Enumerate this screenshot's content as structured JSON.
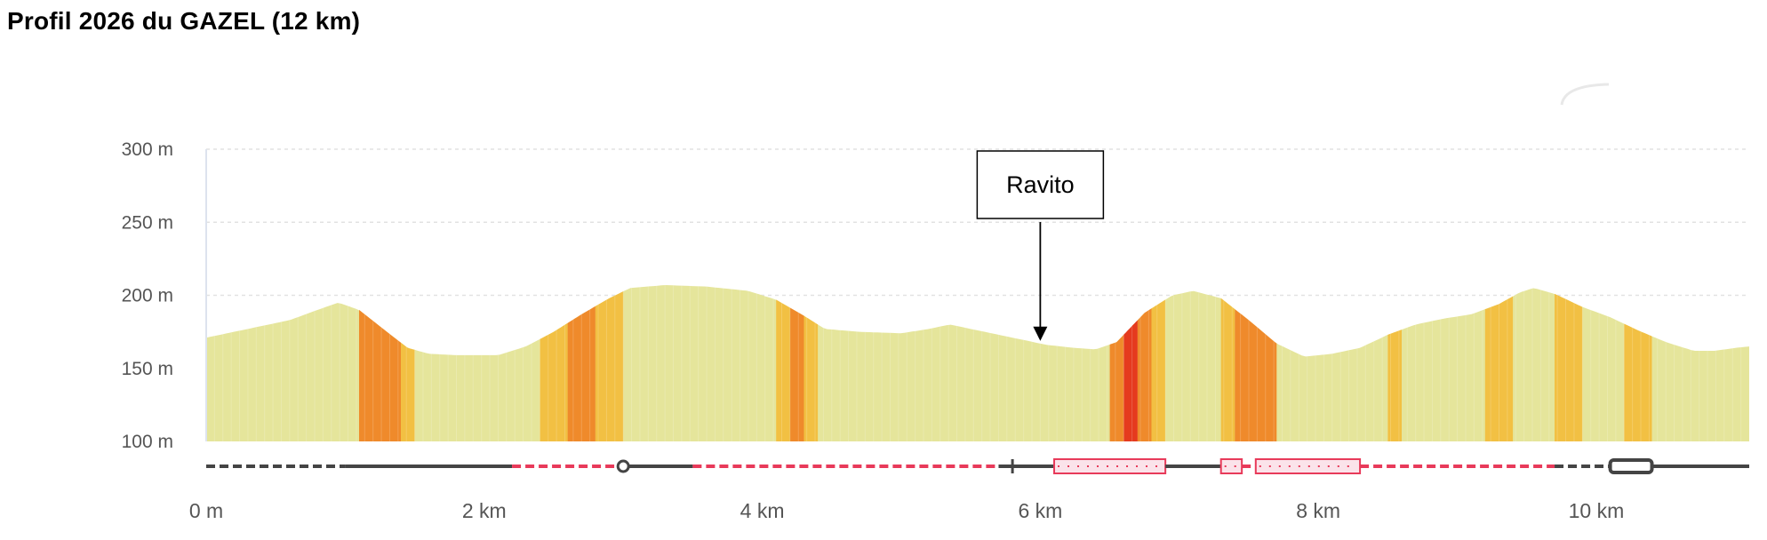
{
  "title": "Profil 2026 du GAZEL (12 km)",
  "chart_data": {
    "type": "area",
    "title": "Profil 2026 du GAZEL (12 km)",
    "xlabel": "",
    "ylabel": "",
    "xlim": [
      0,
      11.1
    ],
    "ylim": [
      100,
      300
    ],
    "x_ticks": [
      {
        "value": 0,
        "label": "0 m"
      },
      {
        "value": 2,
        "label": "2 km"
      },
      {
        "value": 4,
        "label": "4 km"
      },
      {
        "value": 6,
        "label": "6 km"
      },
      {
        "value": 8,
        "label": "8 km"
      },
      {
        "value": 10,
        "label": "10 km"
      }
    ],
    "y_ticks": [
      {
        "value": 100,
        "label": "100 m"
      },
      {
        "value": 150,
        "label": "150 m"
      },
      {
        "value": 200,
        "label": "200 m"
      },
      {
        "value": 250,
        "label": "250 m"
      },
      {
        "value": 300,
        "label": "300 m"
      }
    ],
    "grid": true,
    "elevation": [
      {
        "x": 0.0,
        "y": 171
      },
      {
        "x": 0.2,
        "y": 175
      },
      {
        "x": 0.4,
        "y": 179
      },
      {
        "x": 0.6,
        "y": 183
      },
      {
        "x": 0.8,
        "y": 190
      },
      {
        "x": 0.95,
        "y": 195
      },
      {
        "x": 1.1,
        "y": 190
      },
      {
        "x": 1.3,
        "y": 175
      },
      {
        "x": 1.45,
        "y": 164
      },
      {
        "x": 1.6,
        "y": 160
      },
      {
        "x": 1.8,
        "y": 159
      },
      {
        "x": 2.1,
        "y": 159
      },
      {
        "x": 2.3,
        "y": 165
      },
      {
        "x": 2.5,
        "y": 175
      },
      {
        "x": 2.7,
        "y": 187
      },
      {
        "x": 2.9,
        "y": 198
      },
      {
        "x": 3.05,
        "y": 205
      },
      {
        "x": 3.3,
        "y": 207
      },
      {
        "x": 3.6,
        "y": 206
      },
      {
        "x": 3.9,
        "y": 203
      },
      {
        "x": 4.1,
        "y": 197
      },
      {
        "x": 4.3,
        "y": 186
      },
      {
        "x": 4.45,
        "y": 177
      },
      {
        "x": 4.7,
        "y": 175
      },
      {
        "x": 5.0,
        "y": 174
      },
      {
        "x": 5.2,
        "y": 177
      },
      {
        "x": 5.35,
        "y": 180
      },
      {
        "x": 5.55,
        "y": 176
      },
      {
        "x": 5.8,
        "y": 171
      },
      {
        "x": 6.05,
        "y": 166
      },
      {
        "x": 6.25,
        "y": 164
      },
      {
        "x": 6.4,
        "y": 163
      },
      {
        "x": 6.55,
        "y": 168
      },
      {
        "x": 6.75,
        "y": 188
      },
      {
        "x": 6.95,
        "y": 200
      },
      {
        "x": 7.1,
        "y": 203
      },
      {
        "x": 7.3,
        "y": 198
      },
      {
        "x": 7.5,
        "y": 183
      },
      {
        "x": 7.7,
        "y": 167
      },
      {
        "x": 7.9,
        "y": 158
      },
      {
        "x": 8.1,
        "y": 160
      },
      {
        "x": 8.3,
        "y": 164
      },
      {
        "x": 8.5,
        "y": 173
      },
      {
        "x": 8.7,
        "y": 180
      },
      {
        "x": 8.9,
        "y": 184
      },
      {
        "x": 9.1,
        "y": 187
      },
      {
        "x": 9.3,
        "y": 194
      },
      {
        "x": 9.45,
        "y": 202
      },
      {
        "x": 9.55,
        "y": 205
      },
      {
        "x": 9.7,
        "y": 201
      },
      {
        "x": 9.9,
        "y": 192
      },
      {
        "x": 10.1,
        "y": 185
      },
      {
        "x": 10.3,
        "y": 176
      },
      {
        "x": 10.5,
        "y": 168
      },
      {
        "x": 10.7,
        "y": 162
      },
      {
        "x": 10.85,
        "y": 162
      },
      {
        "x": 11.0,
        "y": 164
      },
      {
        "x": 11.1,
        "y": 165
      }
    ],
    "slope_colors": {
      "flat": "#e5e59b",
      "moderate": "#f2c043",
      "steep": "#ef8a2b",
      "very_steep": "#e53a1e"
    },
    "slope_segments": [
      {
        "from": 1.1,
        "to": 1.4,
        "level": "steep"
      },
      {
        "from": 1.4,
        "to": 1.5,
        "level": "moderate"
      },
      {
        "from": 2.4,
        "to": 2.6,
        "level": "moderate"
      },
      {
        "from": 2.6,
        "to": 2.8,
        "level": "steep"
      },
      {
        "from": 2.8,
        "to": 3.0,
        "level": "moderate"
      },
      {
        "from": 4.1,
        "to": 4.2,
        "level": "moderate"
      },
      {
        "from": 4.2,
        "to": 4.3,
        "level": "steep"
      },
      {
        "from": 4.3,
        "to": 4.4,
        "level": "moderate"
      },
      {
        "from": 6.5,
        "to": 6.6,
        "level": "steep"
      },
      {
        "from": 6.6,
        "to": 6.7,
        "level": "very_steep"
      },
      {
        "from": 6.7,
        "to": 6.8,
        "level": "steep"
      },
      {
        "from": 6.8,
        "to": 6.9,
        "level": "moderate"
      },
      {
        "from": 7.3,
        "to": 7.4,
        "level": "moderate"
      },
      {
        "from": 7.4,
        "to": 7.7,
        "level": "steep"
      },
      {
        "from": 8.5,
        "to": 8.6,
        "level": "moderate"
      },
      {
        "from": 9.2,
        "to": 9.4,
        "level": "moderate"
      },
      {
        "from": 9.7,
        "to": 9.9,
        "level": "moderate"
      },
      {
        "from": 10.2,
        "to": 10.4,
        "level": "moderate"
      }
    ],
    "surface_colors": {
      "dark": "#444444",
      "red": "#e83a5a",
      "highlight_fill": "#fbe3ea"
    },
    "surface_strip": [
      {
        "from": 0.0,
        "to": 1.0,
        "style": "dark-dashed"
      },
      {
        "from": 1.0,
        "to": 2.2,
        "style": "dark-solid"
      },
      {
        "from": 2.2,
        "to": 3.0,
        "style": "red-dashed"
      },
      {
        "from": 3.0,
        "to": 3.5,
        "style": "dark-solid"
      },
      {
        "from": 3.5,
        "to": 5.7,
        "style": "red-dashed"
      },
      {
        "from": 5.7,
        "to": 6.1,
        "style": "dark-solid"
      },
      {
        "from": 6.1,
        "to": 6.9,
        "style": "red-box"
      },
      {
        "from": 6.9,
        "to": 7.3,
        "style": "dark-solid"
      },
      {
        "from": 7.3,
        "to": 7.45,
        "style": "red-box"
      },
      {
        "from": 7.45,
        "to": 7.55,
        "style": "red-dashed"
      },
      {
        "from": 7.55,
        "to": 8.3,
        "style": "red-box"
      },
      {
        "from": 8.3,
        "to": 9.7,
        "style": "red-dashed"
      },
      {
        "from": 9.7,
        "to": 10.1,
        "style": "dark-dashed"
      },
      {
        "from": 10.1,
        "to": 10.4,
        "style": "dark-box"
      },
      {
        "from": 10.4,
        "to": 11.1,
        "style": "dark-solid"
      }
    ],
    "surface_markers": [
      {
        "x": 3.0,
        "shape": "circle"
      },
      {
        "x": 5.8,
        "shape": "tick"
      }
    ],
    "annotations": [
      {
        "text": "Ravito",
        "x": 6.0
      }
    ]
  }
}
